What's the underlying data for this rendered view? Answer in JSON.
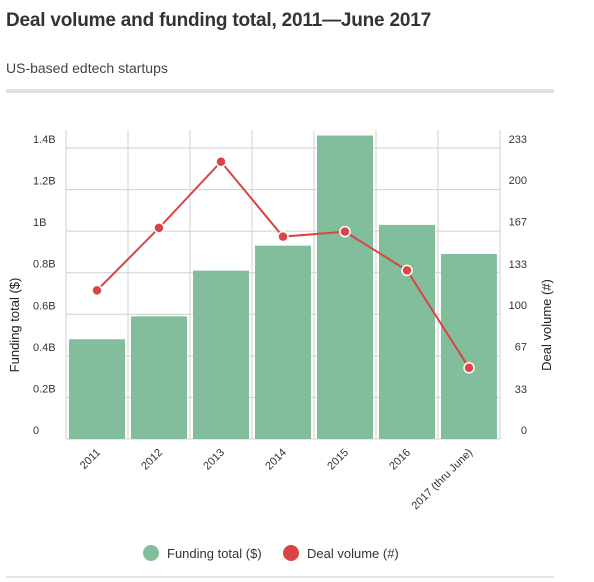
{
  "header": {
    "title": "Deal volume and funding total, 2011—June 2017",
    "subtitle": "US-based edtech startups"
  },
  "colors": {
    "bar": "#82bd9c",
    "line": "#d94545",
    "grid": "#d0d0d0"
  },
  "chart_data": {
    "type": "bar",
    "categories": [
      "2011",
      "2012",
      "2013",
      "2014",
      "2015",
      "2016",
      "2017 (thru June)"
    ],
    "series": [
      {
        "name": "Funding total ($)",
        "type": "bar",
        "axis": "left",
        "values": [
          0.48,
          0.59,
          0.81,
          0.93,
          1.46,
          1.03,
          0.89
        ]
      },
      {
        "name": "Deal volume (#)",
        "type": "line",
        "axis": "right",
        "values": [
          119,
          169,
          222,
          162,
          166,
          135,
          57
        ]
      }
    ],
    "left_axis": {
      "label": "Funding total ($)",
      "ylim": [
        0,
        1.4
      ],
      "ticks": [
        0,
        0.2,
        0.4,
        0.6,
        0.8,
        1.0,
        1.2,
        1.4
      ],
      "tick_labels": [
        "0",
        "0.2B",
        "0.4B",
        "0.6B",
        "0.8B",
        "1B",
        "1.2B",
        "1.4B"
      ]
    },
    "right_axis": {
      "label": "Deal volume (#)",
      "ylim": [
        0,
        233
      ],
      "ticks": [
        0,
        33,
        67,
        100,
        133,
        167,
        200,
        233
      ],
      "tick_labels": [
        "0",
        "33",
        "67",
        "100",
        "133",
        "167",
        "200",
        "233"
      ]
    },
    "grid": true,
    "legend_position": "bottom"
  }
}
